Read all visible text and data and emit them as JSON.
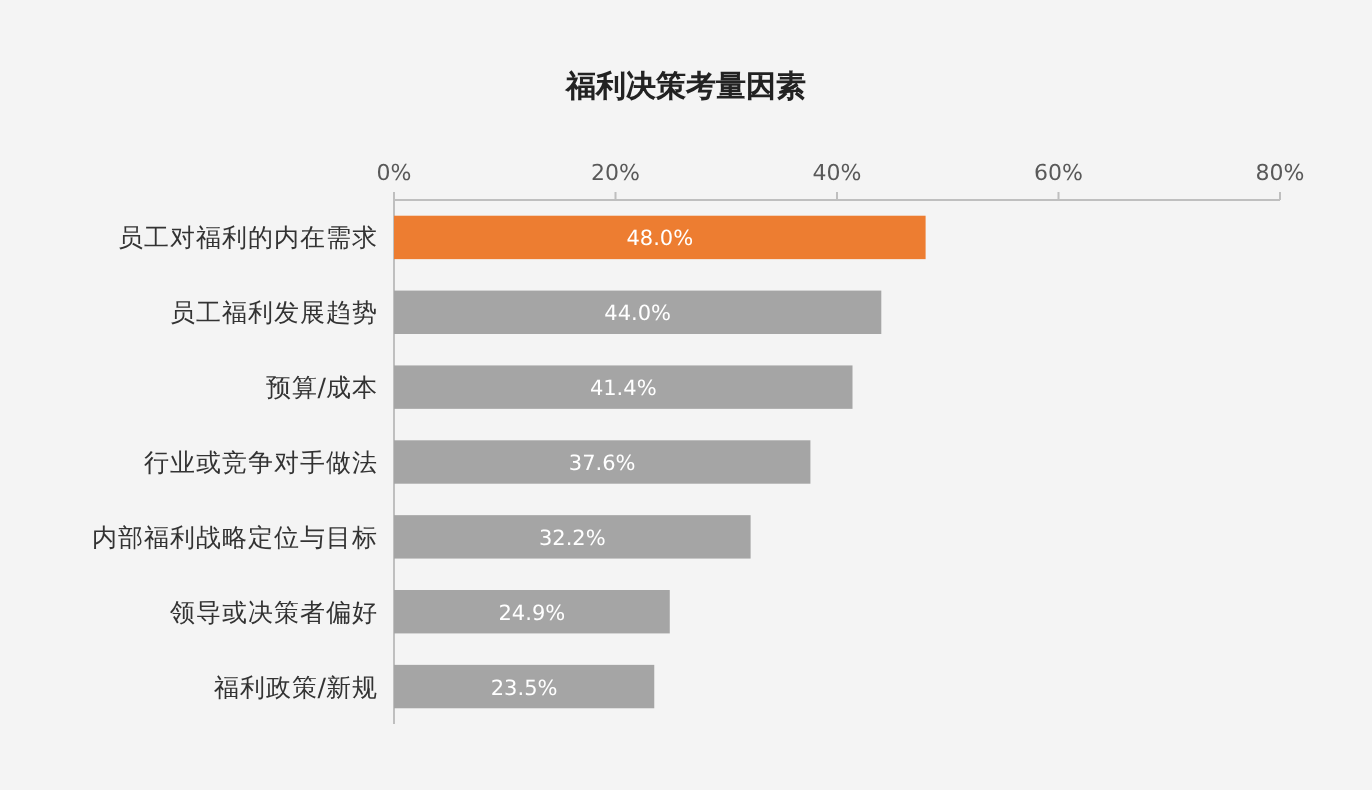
{
  "chart_data": {
    "type": "bar",
    "orientation": "horizontal",
    "title": "福利决策考量因素",
    "categories": [
      "员工对福利的内在需求",
      "员工福利发展趋势",
      "预算/成本",
      "行业或竞争对手做法",
      "内部福利战略定位与目标",
      "领导或决策者偏好",
      "福利政策/新规"
    ],
    "values": [
      48.0,
      44.0,
      41.4,
      37.6,
      32.2,
      24.9,
      23.5
    ],
    "colors": [
      "#ed7d31",
      "#a5a5a5",
      "#a5a5a5",
      "#a5a5a5",
      "#a5a5a5",
      "#a5a5a5",
      "#a5a5a5"
    ],
    "value_labels": [
      "48.0%",
      "44.0%",
      "41.4%",
      "37.6%",
      "32.2%",
      "24.9%",
      "23.5%"
    ],
    "xlim": [
      0,
      80
    ],
    "xticks": [
      {
        "value": 0,
        "label": "0%"
      },
      {
        "value": 20,
        "label": "20%"
      },
      {
        "value": 40,
        "label": "40%"
      },
      {
        "value": 60,
        "label": "60%"
      },
      {
        "value": 80,
        "label": "80%"
      }
    ]
  }
}
